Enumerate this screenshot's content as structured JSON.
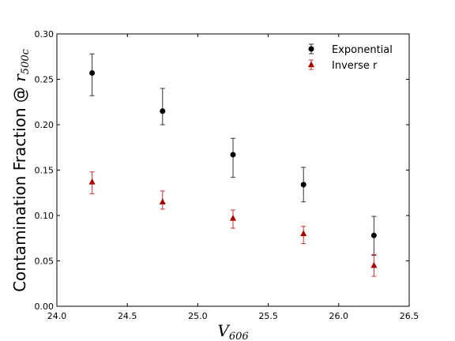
{
  "chart_data": {
    "type": "scatter",
    "xlabel": "V",
    "xlabel_sub": "606",
    "ylabel": "Contamination Fraction @ ",
    "ylabel_math": "r",
    "ylabel_math_sub": "500c",
    "xlim": [
      24.0,
      26.5
    ],
    "ylim": [
      0.0,
      0.3
    ],
    "xticks": [
      "24.0",
      "24.5",
      "25.0",
      "25.5",
      "26.0",
      "26.5"
    ],
    "yticks": [
      "0.00",
      "0.05",
      "0.10",
      "0.15",
      "0.20",
      "0.25",
      "0.30"
    ],
    "grid": false,
    "legend_position": "top-right",
    "series": [
      {
        "name": "Exponential",
        "marker": "circle",
        "color": "#000000",
        "errorbar_color": "#333333",
        "x": [
          24.25,
          24.75,
          25.25,
          25.75,
          26.25
        ],
        "y": [
          0.257,
          0.215,
          0.167,
          0.134,
          0.078
        ],
        "err_low": [
          0.025,
          0.015,
          0.025,
          0.019,
          0.022
        ],
        "err_high": [
          0.021,
          0.025,
          0.018,
          0.019,
          0.021
        ]
      },
      {
        "name": "Inverse r",
        "marker": "triangle",
        "color": "#aa0000",
        "errorbar_color": "#cc3333",
        "x": [
          24.25,
          24.75,
          25.25,
          25.75,
          26.25
        ],
        "y": [
          0.137,
          0.115,
          0.097,
          0.08,
          0.045
        ],
        "err_low": [
          0.013,
          0.008,
          0.011,
          0.011,
          0.012
        ],
        "err_high": [
          0.011,
          0.012,
          0.009,
          0.008,
          0.012
        ]
      }
    ]
  }
}
